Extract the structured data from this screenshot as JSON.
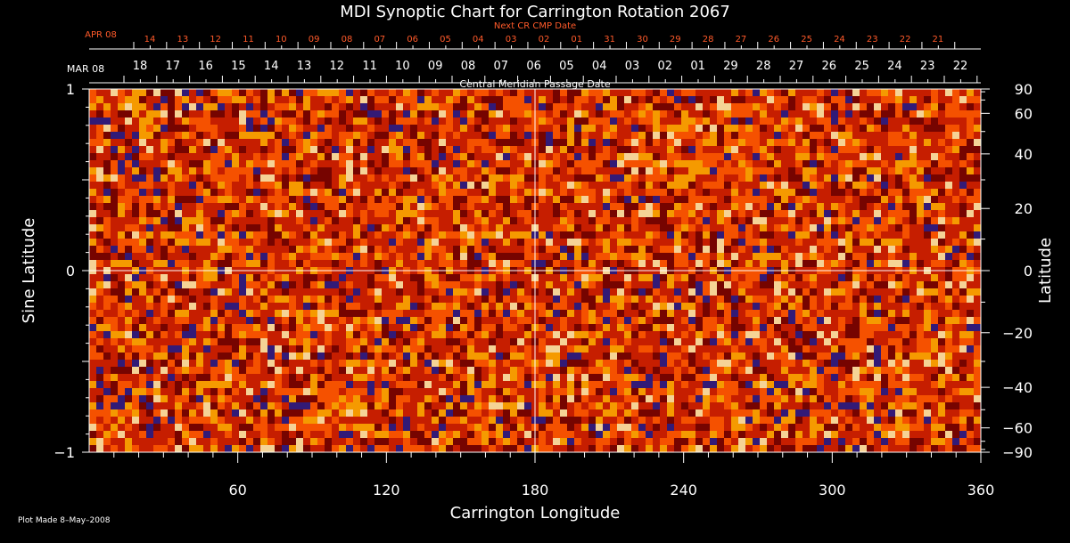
{
  "chart_data": {
    "type": "heatmap",
    "title": "MDI Synoptic Chart for Carrington Rotation 2067",
    "xlabel": "Carrington Longitude",
    "ylabel": "Sine Latitude",
    "ylabel_right": "Latitude",
    "top_label_next": "Next CR CMP Date",
    "top_label_cmp": "Central Meridian Passage Date",
    "xlim": [
      0,
      360
    ],
    "ylim": [
      -1,
      1
    ],
    "x_ticks": [
      60,
      120,
      180,
      240,
      300,
      360
    ],
    "y_ticks_left": [
      1,
      0,
      -1
    ],
    "y_tick_labels_left": [
      "1",
      "0",
      "−1"
    ],
    "lat_ticks_right": [
      90,
      60,
      40,
      20,
      0,
      -20,
      -40,
      -60,
      -90
    ],
    "lat_tick_labels_right": [
      "90",
      "60",
      "40",
      "20",
      "0",
      "−20",
      "−40",
      "−60",
      "−90"
    ],
    "next_cmp_month": "APR 08",
    "next_cmp_dates": [
      "14",
      "13",
      "12",
      "11",
      "10",
      "09",
      "08",
      "07",
      "06",
      "05",
      "04",
      "03",
      "02",
      "01",
      "31",
      "30",
      "29",
      "28",
      "27",
      "26",
      "25",
      "24",
      "23",
      "22",
      "21"
    ],
    "cmp_month": "MAR 08",
    "cmp_dates": [
      "18",
      "17",
      "16",
      "15",
      "14",
      "13",
      "12",
      "11",
      "10",
      "09",
      "08",
      "07",
      "06",
      "05",
      "04",
      "03",
      "02",
      "01",
      "29",
      "28",
      "27",
      "26",
      "25",
      "24",
      "23",
      "22"
    ],
    "colormap": [
      "#1a1a8c",
      "#6a0000",
      "#c81e00",
      "#ff5a00",
      "#ffb000",
      "#fff3b0"
    ],
    "colors": {
      "title": "#ffffff",
      "axes": "#ffffff",
      "next_cmp": "#ff5a2a",
      "grid": "#ffffff"
    }
  },
  "footer": {
    "plot_made": "Plot Made  8–May–2008"
  }
}
